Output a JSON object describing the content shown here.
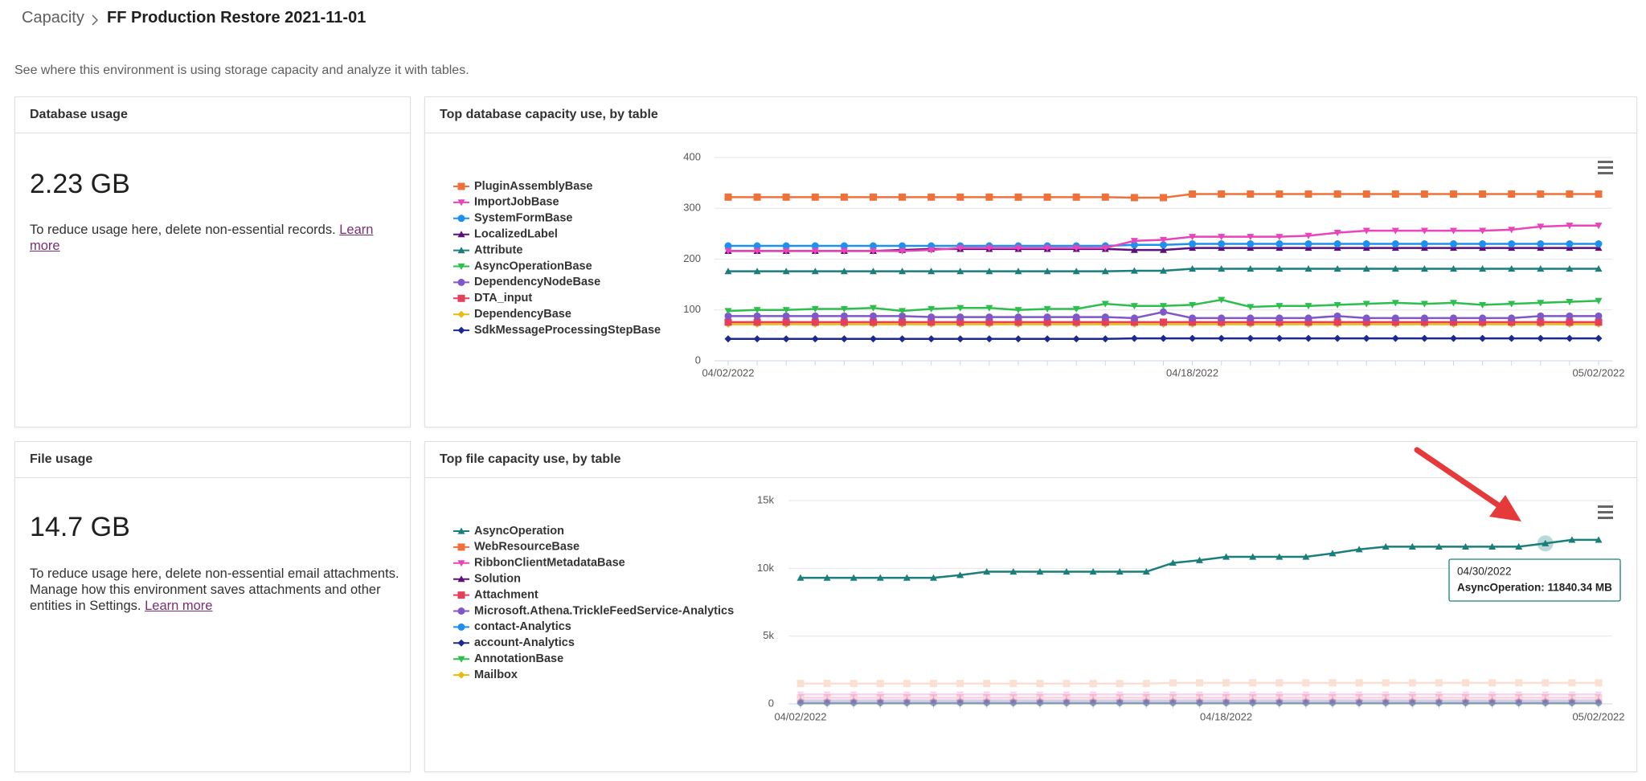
{
  "breadcrumb": [
    "Capacity",
    "FF Production Restore 2021-11-01"
  ],
  "description": "See where this environment is using storage capacity and analyze it with tables.",
  "cards": [
    {
      "title": "Database usage",
      "value": "2.23 GB",
      "text": "To reduce usage here, delete non-essential records.",
      "link": "Learn more"
    },
    {
      "title": "File usage",
      "value": "14.7 GB",
      "text": "To reduce usage here, delete non-essential email attachments. Manage how this environment saves attachments and other entities in Settings.",
      "link": "Learn more"
    }
  ],
  "chart_data": [
    {
      "type": "line",
      "title": "Top database capacity use, by table",
      "legend": "left",
      "grid": true,
      "categories": [
        "04/02/2022",
        null,
        null,
        null,
        null,
        null,
        null,
        null,
        null,
        null,
        null,
        null,
        null,
        null,
        null,
        null,
        "04/18/2022",
        null,
        null,
        null,
        null,
        null,
        null,
        null,
        null,
        null,
        null,
        null,
        null,
        null,
        "05/02/2022"
      ],
      "ylim": [
        0,
        400
      ],
      "yticks": [
        0,
        100,
        200,
        300,
        400
      ],
      "series": [
        {
          "name": "PluginAssemblyBase",
          "color": "#f0703a",
          "marker": "square",
          "values": [
            322,
            322,
            322,
            322,
            322,
            322,
            322,
            322,
            322,
            322,
            322,
            322,
            322,
            322,
            321,
            321,
            328,
            328,
            328,
            328,
            328,
            328,
            328,
            328,
            328,
            328,
            328,
            328,
            328,
            328,
            328
          ]
        },
        {
          "name": "ImportJobBase",
          "color": "#e845b8",
          "marker": "triangle-down",
          "values": [
            216,
            216,
            216,
            216,
            216,
            216,
            216,
            218,
            222,
            222,
            222,
            222,
            222,
            222,
            236,
            238,
            244,
            244,
            244,
            244,
            246,
            252,
            256,
            256,
            256,
            256,
            256,
            258,
            264,
            266,
            266
          ]
        },
        {
          "name": "SystemFormBase",
          "color": "#1e90ef",
          "marker": "circle",
          "values": [
            226,
            226,
            226,
            226,
            226,
            226,
            226,
            226,
            226,
            226,
            226,
            226,
            226,
            226,
            228,
            228,
            230,
            230,
            230,
            230,
            230,
            230,
            230,
            230,
            230,
            230,
            230,
            230,
            230,
            230,
            230
          ]
        },
        {
          "name": "LocalizedLabel",
          "color": "#5c0f78",
          "marker": "triangle-up",
          "values": [
            216,
            216,
            216,
            216,
            216,
            216,
            218,
            220,
            220,
            220,
            220,
            220,
            220,
            220,
            218,
            218,
            222,
            222,
            222,
            222,
            222,
            222,
            222,
            222,
            222,
            222,
            222,
            222,
            222,
            222,
            222
          ]
        },
        {
          "name": "Attribute",
          "color": "#1a7f7a",
          "marker": "triangle-up",
          "values": [
            176,
            176,
            176,
            176,
            176,
            176,
            176,
            176,
            176,
            176,
            176,
            176,
            176,
            176,
            177,
            177,
            181,
            181,
            181,
            181,
            181,
            181,
            181,
            181,
            181,
            181,
            181,
            181,
            181,
            181,
            181
          ]
        },
        {
          "name": "AsyncOperationBase",
          "color": "#2dbe4e",
          "marker": "triangle-down",
          "values": [
            98,
            100,
            100,
            102,
            102,
            104,
            98,
            102,
            104,
            104,
            100,
            102,
            102,
            112,
            108,
            108,
            110,
            120,
            106,
            108,
            108,
            110,
            112,
            114,
            112,
            114,
            110,
            112,
            114,
            116,
            118
          ]
        },
        {
          "name": "DependencyNodeBase",
          "color": "#7e57c8",
          "marker": "circle",
          "values": [
            88,
            88,
            88,
            88,
            88,
            88,
            88,
            86,
            86,
            86,
            86,
            86,
            86,
            86,
            84,
            96,
            84,
            84,
            84,
            84,
            84,
            88,
            84,
            84,
            84,
            84,
            84,
            84,
            88,
            88,
            88
          ]
        },
        {
          "name": "DTA_input",
          "color": "#e63f5a",
          "marker": "square",
          "values": [
            76,
            76,
            76,
            76,
            76,
            76,
            76,
            76,
            76,
            76,
            76,
            76,
            76,
            76,
            76,
            76,
            76,
            76,
            76,
            76,
            76,
            76,
            76,
            76,
            76,
            76,
            76,
            76,
            76,
            76,
            76
          ]
        },
        {
          "name": "DependencyBase",
          "color": "#e8bc0c",
          "marker": "diamond",
          "values": [
            72,
            72,
            72,
            72,
            72,
            72,
            72,
            72,
            72,
            72,
            72,
            72,
            72,
            72,
            72,
            72,
            72,
            72,
            72,
            72,
            72,
            72,
            72,
            72,
            72,
            72,
            72,
            72,
            72,
            72,
            72
          ]
        },
        {
          "name": "SdkMessageProcessingStepBase",
          "color": "#1c2a8f",
          "marker": "diamond",
          "values": [
            43,
            43,
            43,
            43,
            43,
            43,
            43,
            43,
            43,
            43,
            43,
            43,
            43,
            43,
            44,
            44,
            44,
            44,
            44,
            44,
            44,
            44,
            44,
            44,
            44,
            44,
            44,
            44,
            44,
            44,
            44
          ]
        }
      ]
    },
    {
      "type": "line",
      "title": "Top file capacity use, by table",
      "legend": "left",
      "grid": true,
      "categories": [
        "04/02/2022",
        null,
        null,
        null,
        null,
        null,
        null,
        null,
        null,
        null,
        null,
        null,
        null,
        null,
        null,
        null,
        "04/18/2022",
        null,
        null,
        null,
        null,
        null,
        null,
        null,
        null,
        null,
        null,
        null,
        null,
        null,
        "05/02/2022"
      ],
      "ylim": [
        0,
        15000
      ],
      "yticks": [
        0,
        {
          "value": 5000,
          "label": "5k"
        },
        {
          "value": 10000,
          "label": "10k"
        },
        {
          "value": 15000,
          "label": "15k"
        }
      ],
      "tooltip": {
        "x": "04/30/2022",
        "text": "AsyncOperation: 11840.34 MB"
      },
      "series": [
        {
          "name": "AsyncOperation",
          "color": "#1a7f7a",
          "marker": "triangle-up",
          "values": [
            9300,
            9300,
            9300,
            9300,
            9300,
            9300,
            9500,
            9750,
            9750,
            9750,
            9750,
            9750,
            9750,
            9750,
            10400,
            10600,
            10850,
            10850,
            10850,
            10850,
            11100,
            11400,
            11600,
            11600,
            11600,
            11600,
            11600,
            11600,
            11840.34,
            12100,
            12100
          ]
        },
        {
          "name": "WebResourceBase",
          "color": "#f0703a",
          "marker": "square",
          "values": [
            1500,
            1500,
            1500,
            1500,
            1500,
            1500,
            1500,
            1500,
            1500,
            1500,
            1500,
            1500,
            1500,
            1500,
            1550,
            1550,
            1550,
            1550,
            1550,
            1550,
            1550,
            1550,
            1550,
            1550,
            1550,
            1550,
            1550,
            1550,
            1550,
            1550,
            1550
          ]
        },
        {
          "name": "RibbonClientMetadataBase",
          "color": "#e845b8",
          "marker": "triangle-down",
          "values": [
            700,
            700,
            700,
            700,
            700,
            700,
            700,
            700,
            700,
            700,
            700,
            700,
            700,
            700,
            700,
            700,
            700,
            700,
            700,
            700,
            700,
            700,
            700,
            700,
            700,
            700,
            700,
            700,
            700,
            700,
            700
          ]
        },
        {
          "name": "Solution",
          "color": "#5c0f78",
          "marker": "triangle-up",
          "values": [
            250,
            250,
            250,
            250,
            250,
            250,
            250,
            250,
            250,
            250,
            250,
            250,
            250,
            250,
            250,
            250,
            250,
            250,
            250,
            250,
            250,
            250,
            250,
            250,
            250,
            250,
            250,
            250,
            250,
            250,
            250
          ]
        },
        {
          "name": "Attachment",
          "color": "#e63f5a",
          "marker": "square",
          "values": [
            450,
            450,
            450,
            450,
            450,
            450,
            450,
            450,
            450,
            450,
            450,
            450,
            450,
            450,
            450,
            450,
            450,
            450,
            450,
            450,
            450,
            450,
            450,
            450,
            450,
            450,
            450,
            450,
            450,
            450,
            450
          ]
        },
        {
          "name": "Microsoft.Athena.TrickleFeedService-Analytics",
          "color": "#7e57c8",
          "marker": "circle",
          "values": [
            100,
            100,
            100,
            100,
            100,
            100,
            100,
            100,
            100,
            100,
            100,
            100,
            100,
            100,
            100,
            100,
            100,
            100,
            100,
            100,
            100,
            100,
            100,
            100,
            100,
            100,
            100,
            100,
            100,
            100,
            100
          ]
        },
        {
          "name": "contact-Analytics",
          "color": "#1e90ef",
          "marker": "circle",
          "values": [
            80,
            80,
            80,
            80,
            80,
            80,
            80,
            80,
            80,
            80,
            80,
            80,
            80,
            80,
            80,
            80,
            80,
            80,
            80,
            80,
            80,
            80,
            80,
            80,
            80,
            80,
            80,
            80,
            80,
            80,
            80
          ]
        },
        {
          "name": "account-Analytics",
          "color": "#1c2a8f",
          "marker": "diamond",
          "values": [
            60,
            60,
            60,
            60,
            60,
            60,
            60,
            60,
            60,
            60,
            60,
            60,
            60,
            60,
            60,
            60,
            60,
            60,
            60,
            60,
            60,
            60,
            60,
            60,
            60,
            60,
            60,
            60,
            60,
            60,
            60
          ]
        },
        {
          "name": "AnnotationBase",
          "color": "#2dbe4e",
          "marker": "triangle-down",
          "values": [
            30,
            30,
            30,
            30,
            30,
            30,
            30,
            30,
            30,
            30,
            30,
            30,
            30,
            30,
            30,
            30,
            30,
            30,
            30,
            30,
            30,
            30,
            30,
            30,
            30,
            30,
            30,
            30,
            30,
            30,
            30
          ]
        },
        {
          "name": "Mailbox",
          "color": "#e8bc0c",
          "marker": "diamond",
          "values": [
            10,
            10,
            10,
            10,
            10,
            10,
            10,
            10,
            10,
            10,
            10,
            10,
            10,
            10,
            10,
            10,
            10,
            10,
            10,
            10,
            10,
            10,
            10,
            10,
            10,
            10,
            10,
            10,
            10,
            10,
            10
          ]
        }
      ]
    }
  ]
}
